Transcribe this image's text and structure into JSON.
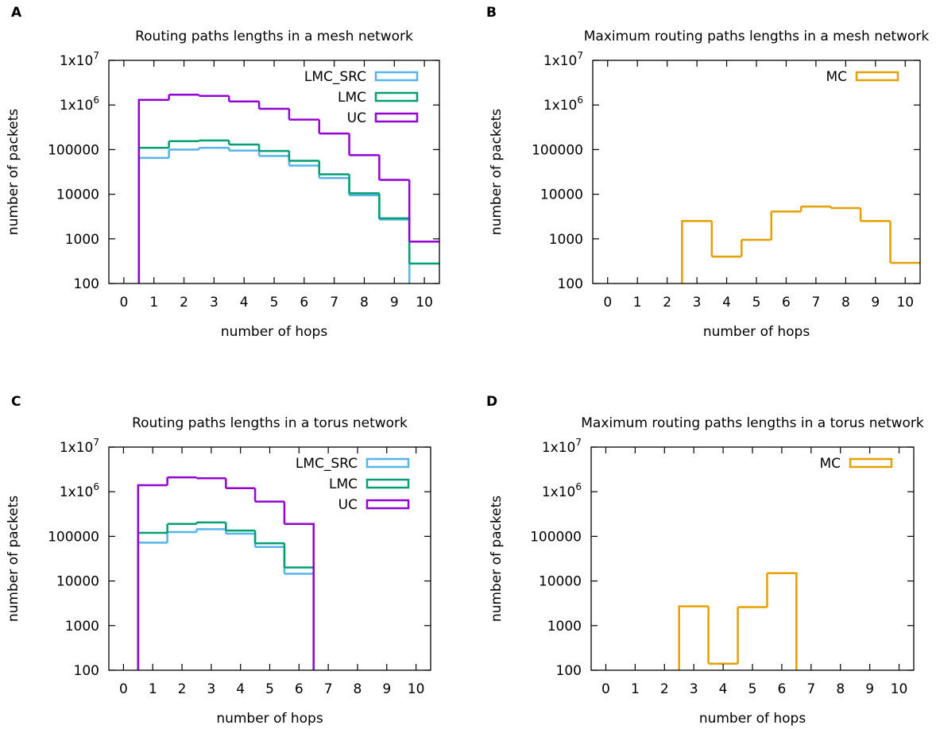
{
  "chart_data": [
    {
      "panel": "A",
      "type": "bar",
      "subtype": "histogram-steps",
      "title": "Routing paths lengths in a mesh network",
      "xlabel": "number of hops",
      "ylabel": "number of packets",
      "yscale": "log",
      "ylim": [
        100,
        10000000
      ],
      "yticks": [
        "100",
        "1000",
        "10000",
        "100000",
        "1x10^6",
        "1x10^7"
      ],
      "categories": [
        "0",
        "1",
        "2",
        "3",
        "4",
        "5",
        "6",
        "7",
        "8",
        "9",
        "10"
      ],
      "legend_position": "top-right",
      "series": [
        {
          "name": "LMC_SRC",
          "color": "#56b4e9",
          "values": [
            null,
            65000,
            100000,
            110000,
            95000,
            72000,
            44000,
            23000,
            9500,
            2700,
            null
          ]
        },
        {
          "name": "LMC",
          "color": "#009e73",
          "values": [
            null,
            110000,
            155000,
            160000,
            130000,
            93000,
            56000,
            28000,
            10500,
            2900,
            280
          ]
        },
        {
          "name": "UC",
          "color": "#9400d3",
          "values": [
            null,
            1300000,
            1700000,
            1600000,
            1200000,
            820000,
            470000,
            230000,
            75000,
            21000,
            870
          ]
        }
      ]
    },
    {
      "panel": "B",
      "type": "bar",
      "subtype": "histogram-steps",
      "title": "Maximum routing paths lengths in a mesh network",
      "xlabel": "number of hops",
      "ylabel": "number of packets",
      "yscale": "log",
      "ylim": [
        100,
        10000000
      ],
      "yticks": [
        "100",
        "1000",
        "10000",
        "100000",
        "1x10^6",
        "1x10^7"
      ],
      "categories": [
        "0",
        "1",
        "2",
        "3",
        "4",
        "5",
        "6",
        "7",
        "8",
        "9",
        "10"
      ],
      "legend_position": "top-right",
      "series": [
        {
          "name": "MC",
          "color": "#e69f00",
          "values": [
            null,
            null,
            null,
            2500,
            400,
            950,
            4100,
            5300,
            4900,
            2500,
            290
          ]
        }
      ]
    },
    {
      "panel": "C",
      "type": "bar",
      "subtype": "histogram-steps",
      "title": "Routing paths lengths in a torus network",
      "xlabel": "number of hops",
      "ylabel": "number of packets",
      "yscale": "log",
      "ylim": [
        100,
        10000000
      ],
      "yticks": [
        "100",
        "1000",
        "10000",
        "100000",
        "1x10^6",
        "1x10^7"
      ],
      "categories": [
        "0",
        "1",
        "2",
        "3",
        "4",
        "5",
        "6",
        "7",
        "8",
        "9",
        "10"
      ],
      "legend_position": "top-right",
      "series": [
        {
          "name": "LMC_SRC",
          "color": "#56b4e9",
          "values": [
            null,
            72000,
            125000,
            145000,
            115000,
            58000,
            14500,
            null,
            null,
            null,
            null
          ]
        },
        {
          "name": "LMC",
          "color": "#009e73",
          "values": [
            null,
            120000,
            190000,
            205000,
            135000,
            70000,
            20000,
            null,
            null,
            null,
            null
          ]
        },
        {
          "name": "UC",
          "color": "#9400d3",
          "values": [
            null,
            1400000,
            2100000,
            2000000,
            1200000,
            600000,
            190000,
            null,
            null,
            null,
            null
          ]
        }
      ]
    },
    {
      "panel": "D",
      "type": "bar",
      "subtype": "histogram-steps",
      "title": "Maximum routing paths lengths in a torus network",
      "xlabel": "number of hops",
      "ylabel": "number of packets",
      "yscale": "log",
      "ylim": [
        100,
        10000000
      ],
      "yticks": [
        "100",
        "1000",
        "10000",
        "100000",
        "1x10^6",
        "1x10^7"
      ],
      "categories": [
        "0",
        "1",
        "2",
        "3",
        "4",
        "5",
        "6",
        "7",
        "8",
        "9",
        "10"
      ],
      "legend_position": "top-right",
      "series": [
        {
          "name": "MC",
          "color": "#e69f00",
          "values": [
            null,
            null,
            null,
            2700,
            140,
            2600,
            15000,
            null,
            null,
            null,
            null
          ]
        }
      ]
    }
  ]
}
